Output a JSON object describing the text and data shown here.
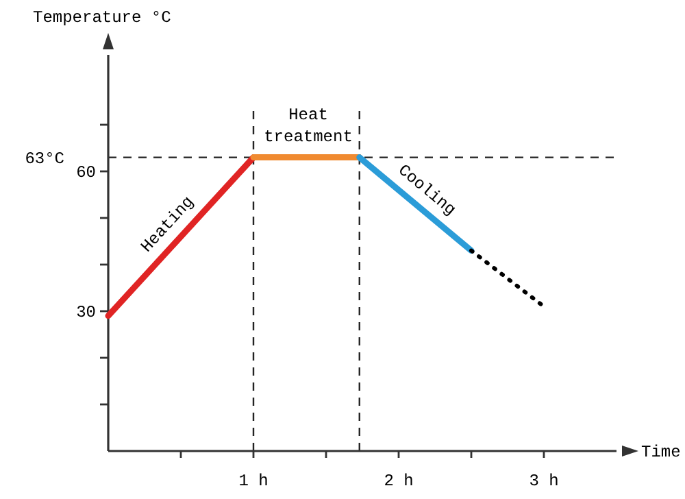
{
  "chart_data": {
    "type": "line",
    "xlabel": "Time",
    "ylabel": "Temperature °C",
    "xlim": [
      0,
      3.5
    ],
    "ylim": [
      0,
      85
    ],
    "xticks": [
      {
        "value": 0.5,
        "label": null
      },
      {
        "value": 1,
        "label": "1 h"
      },
      {
        "value": 1.5,
        "label": null
      },
      {
        "value": 2,
        "label": "2 h"
      },
      {
        "value": 2.5,
        "label": null
      },
      {
        "value": 3,
        "label": "3 h"
      }
    ],
    "yticks": [
      {
        "value": 10,
        "label": null
      },
      {
        "value": 20,
        "label": null
      },
      {
        "value": 30,
        "label": "30"
      },
      {
        "value": 40,
        "label": null
      },
      {
        "value": 50,
        "label": null
      },
      {
        "value": 60,
        "label": "60"
      },
      {
        "value": 70,
        "label": null
      }
    ],
    "series": [
      {
        "name": "Heating",
        "color": "#e02424",
        "x": [
          0,
          1
        ],
        "values": [
          29,
          63
        ]
      },
      {
        "name": "Heat treatment",
        "color": "#f08a30",
        "x": [
          1,
          1.73
        ],
        "values": [
          63,
          63
        ]
      },
      {
        "name": "Cooling",
        "color": "#2b9cd8",
        "x": [
          1.73,
          2.5
        ],
        "values": [
          63,
          43
        ]
      },
      {
        "color": "#000000",
        "line_style": "dotted",
        "x": [
          2.5,
          3
        ],
        "values": [
          43,
          31
        ]
      }
    ],
    "ref_lines": [
      {
        "axis": "y",
        "value": 63,
        "label": "63°C",
        "line_style": "dashed",
        "color": "#222222"
      },
      {
        "axis": "x",
        "value": 1,
        "line_style": "dashed",
        "color": "#222222"
      },
      {
        "axis": "x",
        "value": 1.73,
        "line_style": "dashed",
        "color": "#222222"
      }
    ],
    "grid": false,
    "legend": false,
    "marker": "none",
    "line_style": "solid"
  }
}
